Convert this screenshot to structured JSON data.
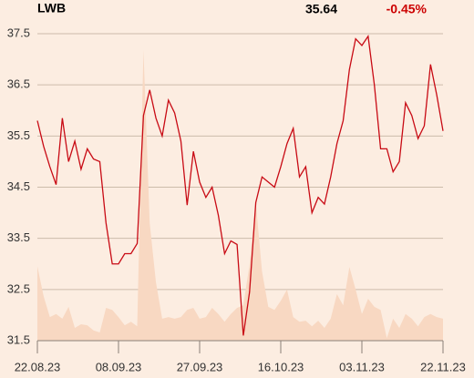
{
  "chart_data": {
    "type": "line",
    "title": "LWB",
    "annotations": [
      "35.64",
      "-0.45%"
    ],
    "annotation_colors": [
      "#000000",
      "#cc0000"
    ],
    "categories": [
      "22.08.23",
      null,
      null,
      null,
      null,
      null,
      null,
      null,
      null,
      null,
      null,
      null,
      null,
      "08.09.23",
      null,
      null,
      null,
      null,
      null,
      null,
      null,
      null,
      null,
      null,
      null,
      null,
      "27.09.23",
      null,
      null,
      null,
      null,
      null,
      null,
      null,
      null,
      null,
      null,
      null,
      null,
      "16.10.23",
      null,
      null,
      null,
      null,
      null,
      null,
      null,
      null,
      null,
      null,
      null,
      null,
      "03.11.23",
      null,
      null,
      null,
      null,
      null,
      null,
      null,
      null,
      null,
      null,
      null,
      null,
      "22.11.23"
    ],
    "series": [
      {
        "kind": "area",
        "color": "#f8d8c2",
        "values": [
          32.95,
          32.37,
          31.96,
          32.02,
          31.93,
          32.16,
          31.75,
          31.82,
          31.8,
          31.7,
          31.66,
          32.14,
          32.1,
          31.96,
          31.8,
          31.87,
          31.78,
          37.18,
          33.8,
          32.64,
          31.93,
          31.96,
          31.93,
          31.96,
          32.1,
          32.14,
          31.93,
          31.96,
          32.14,
          32.02,
          31.87,
          32.02,
          32.14,
          32.19,
          32.99,
          34.2,
          32.85,
          32.16,
          32.1,
          32.28,
          32.5,
          31.96,
          31.87,
          31.89,
          31.78,
          31.89,
          31.75,
          31.93,
          32.41,
          32.19,
          32.94,
          32.5,
          32.02,
          32.32,
          32.16,
          32.1,
          31.55,
          31.93,
          31.75,
          32.02,
          31.93,
          31.78,
          31.96,
          32.02,
          31.96,
          31.93
        ]
      },
      {
        "kind": "line",
        "color": "#c80a14",
        "values": [
          35.8,
          35.3,
          34.9,
          34.55,
          35.85,
          35.0,
          35.4,
          34.85,
          35.25,
          35.05,
          35.0,
          33.8,
          33.0,
          33.0,
          33.2,
          33.2,
          33.4,
          35.9,
          36.4,
          35.85,
          35.5,
          36.2,
          35.95,
          35.4,
          34.15,
          35.2,
          34.6,
          34.3,
          34.5,
          33.95,
          33.2,
          33.45,
          33.38,
          31.6,
          32.45,
          34.2,
          34.7,
          34.6,
          34.5,
          34.9,
          35.35,
          35.65,
          34.7,
          34.9,
          34.0,
          34.3,
          34.17,
          34.7,
          35.35,
          35.8,
          36.8,
          37.4,
          37.27,
          37.45,
          36.5,
          35.25,
          35.25,
          34.8,
          35.0,
          36.15,
          35.9,
          35.45,
          35.7,
          36.9,
          36.3,
          35.6
        ]
      }
    ],
    "ylim": [
      31.5,
      37.5
    ],
    "yticks": [
      31.5,
      32.5,
      33.5,
      34.5,
      35.5,
      36.5,
      37.5
    ],
    "grid": true
  }
}
